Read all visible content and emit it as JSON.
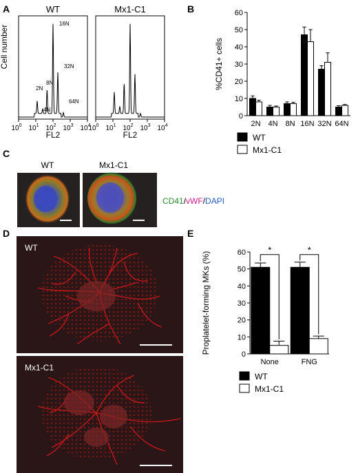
{
  "panels": {
    "A": {
      "letter": "A",
      "ylabel": "Cell number",
      "xlabel": "FL2",
      "tick_exps": [
        "0",
        "1",
        "2",
        "3",
        "4"
      ],
      "tick_base": "10",
      "wt": {
        "title": "WT",
        "peak_labels": [
          "2N",
          "4N",
          "8N",
          "16N",
          "32N",
          "64N"
        ]
      },
      "mx": {
        "title": "Mx1-C1"
      }
    },
    "B": {
      "letter": "B"
    },
    "C": {
      "letter": "C",
      "wt_label": "WT",
      "mx_label": "Mx1-C1",
      "stain": {
        "cd41": "CD41",
        "sep1": "/",
        "vwf": "vWF",
        "sep2": "/",
        "dapi": "DAPI"
      },
      "colors": {
        "cd41": "#2e8b2e",
        "vwf": "#d01a8a",
        "dapi": "#2b5fc4"
      }
    },
    "D": {
      "letter": "D",
      "wt_label": "WT",
      "mx_label": "Mx1-C1"
    },
    "E": {
      "letter": "E",
      "significance": "*"
    }
  },
  "chart_data": [
    {
      "panel": "A-WT",
      "type": "line",
      "title": "WT",
      "xlabel": "FL2",
      "ylabel": "Cell number",
      "x_scale": "log",
      "xlim": [
        1,
        10000
      ],
      "peaks": [
        {
          "label": "2N",
          "fl2": 12,
          "height": 0.14
        },
        {
          "label": "4N",
          "fl2": 25,
          "height": 0.05
        },
        {
          "label": "8N",
          "fl2": 45,
          "height": 0.27
        },
        {
          "label": "16N",
          "fl2": 100,
          "height": 1.0
        },
        {
          "label": "32N",
          "fl2": 190,
          "height": 0.46
        },
        {
          "label": "64N",
          "fl2": 400,
          "height": 0.05
        }
      ]
    },
    {
      "panel": "A-Mx1-C1",
      "type": "line",
      "title": "Mx1-C1",
      "xlabel": "FL2",
      "x_scale": "log",
      "xlim": [
        1,
        10000
      ],
      "peaks": [
        {
          "fl2": 12,
          "height": 0.24
        },
        {
          "fl2": 25,
          "height": 0.08
        },
        {
          "fl2": 45,
          "height": 0.34
        },
        {
          "fl2": 100,
          "height": 1.0
        },
        {
          "fl2": 190,
          "height": 0.44
        },
        {
          "fl2": 400,
          "height": 0.04
        }
      ]
    },
    {
      "panel": "B",
      "type": "bar",
      "ylabel": "%CD41+ cells",
      "ylim": [
        0,
        60
      ],
      "yticks": [
        0,
        10,
        20,
        30,
        40,
        50,
        60
      ],
      "categories": [
        "2N",
        "4N",
        "8N",
        "16N",
        "32N",
        "64N"
      ],
      "series": [
        {
          "name": "WT",
          "values": [
            10,
            5,
            7,
            47,
            27,
            5
          ],
          "errors": [
            1.5,
            1.0,
            1.0,
            4.5,
            2.0,
            0.8
          ],
          "color": "#000000"
        },
        {
          "name": "Mx1-C1",
          "values": [
            8,
            5,
            7,
            43,
            31,
            6
          ],
          "errors": [
            1.0,
            0.6,
            0.8,
            7.0,
            5.5,
            0.5
          ],
          "color": "#ffffff"
        }
      ],
      "legend": "below"
    },
    {
      "panel": "E",
      "type": "bar",
      "ylabel": "Proplatelet-forming MKs (%)",
      "ylim": [
        0,
        60
      ],
      "yticks": [
        0,
        10,
        20,
        30,
        40,
        50,
        60
      ],
      "categories": [
        "None",
        "FNG"
      ],
      "series": [
        {
          "name": "WT",
          "values": [
            51,
            51
          ],
          "errors": [
            2.5,
            3.0
          ],
          "color": "#000000"
        },
        {
          "name": "Mx1-C1",
          "values": [
            5,
            9
          ],
          "errors": [
            2.5,
            1.5
          ],
          "color": "#ffffff"
        }
      ],
      "legend": "below"
    }
  ]
}
